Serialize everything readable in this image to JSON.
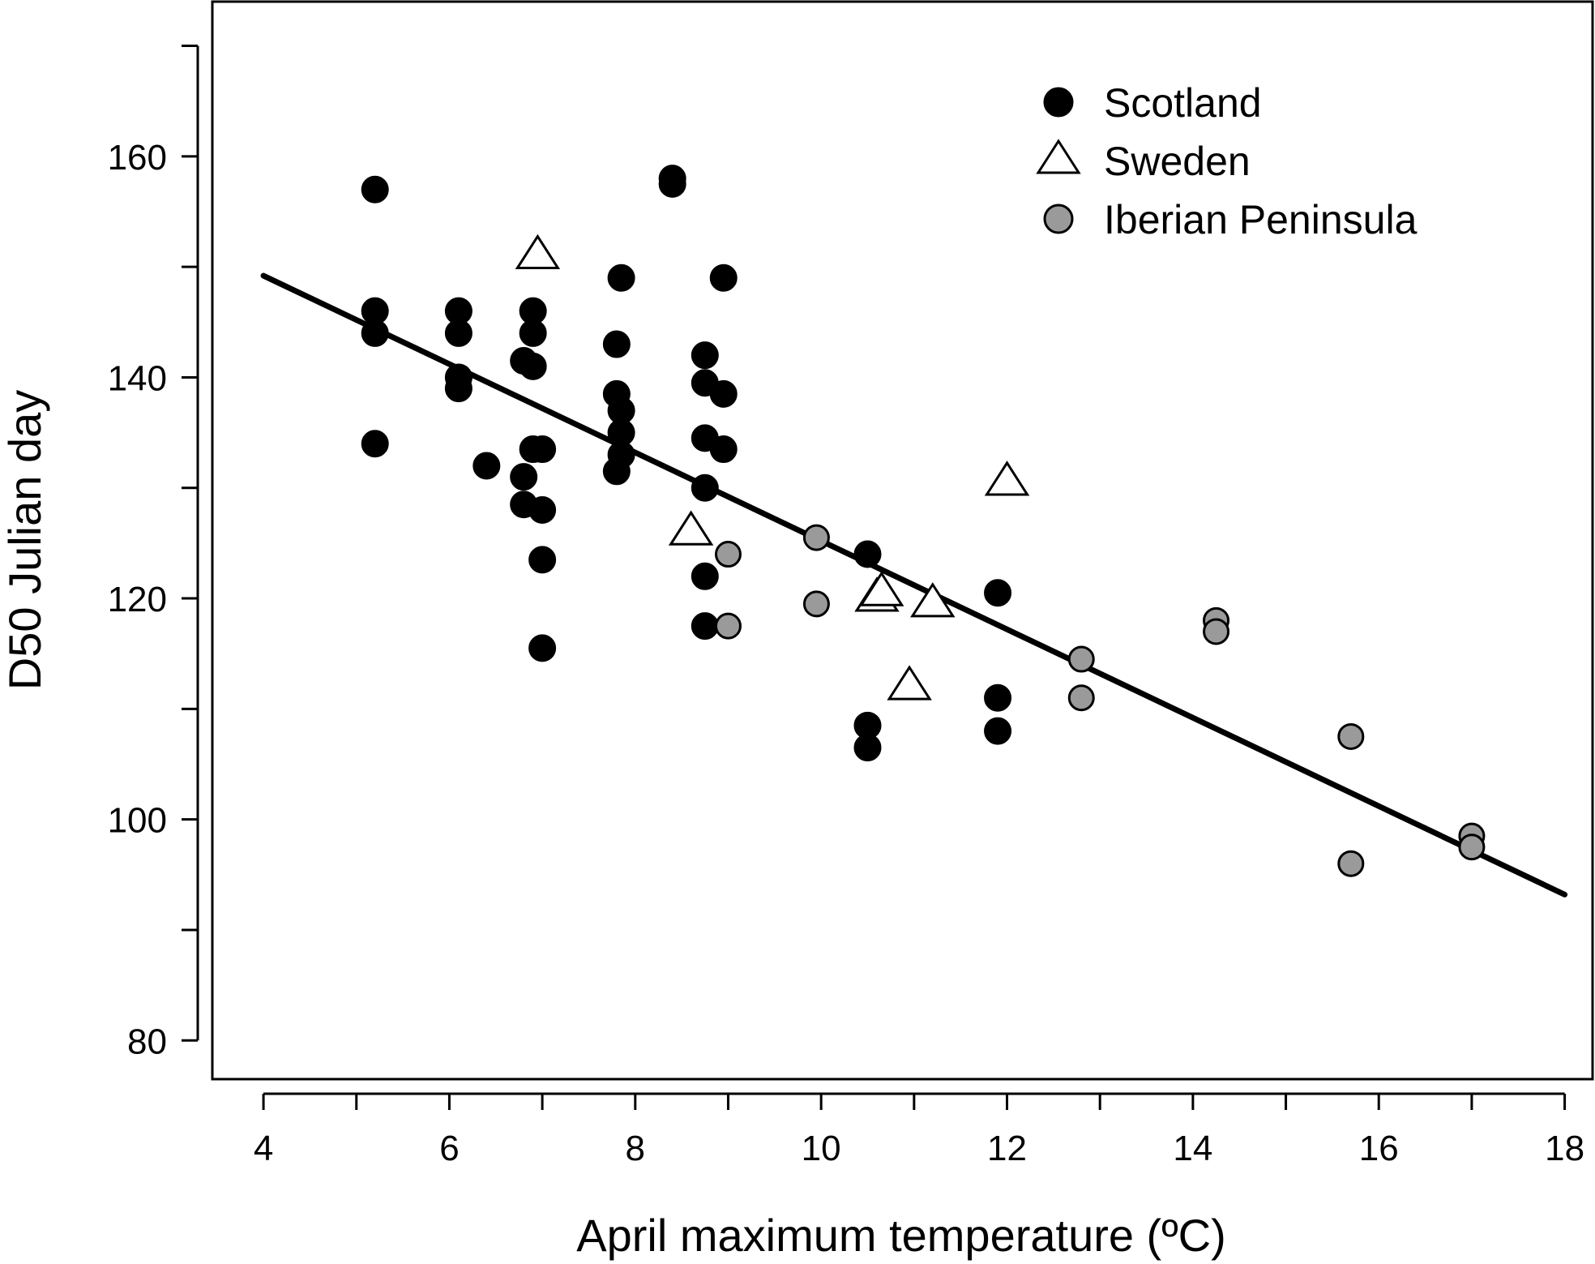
{
  "chart_data": {
    "type": "scatter",
    "title": "",
    "xlabel": "April maximum temperature (ºC)",
    "ylabel": "D50 Julian day",
    "xlim": [
      3.45,
      18.3
    ],
    "ylim": [
      76.5,
      174
    ],
    "x_ticks": [
      4,
      5,
      6,
      7,
      8,
      9,
      10,
      11,
      12,
      13,
      14,
      15,
      16,
      17,
      18
    ],
    "x_tick_labels": [
      "4",
      "",
      "6",
      "",
      "8",
      "",
      "10",
      "",
      "12",
      "",
      "14",
      "",
      "16",
      "",
      "18"
    ],
    "y_ticks": [
      80,
      90,
      100,
      110,
      120,
      130,
      140,
      150,
      160,
      170
    ],
    "y_tick_labels": [
      "80",
      "",
      "100",
      "",
      "120",
      "",
      "140",
      "",
      "160",
      ""
    ],
    "grid": false,
    "legend_position": "top-right",
    "legend": [
      "Scotland",
      "Sweden",
      "Iberian Peninsula"
    ],
    "colors": {
      "scotland": "#000000",
      "sweden": "#ffffff",
      "iberian": "#9a9a9a",
      "line": "#000000"
    },
    "series": [
      {
        "name": "Scotland",
        "marker": "filled-circle",
        "points": [
          [
            5.2,
            157
          ],
          [
            5.2,
            146
          ],
          [
            5.2,
            144
          ],
          [
            5.2,
            134
          ],
          [
            6.1,
            146
          ],
          [
            6.1,
            144
          ],
          [
            6.1,
            140
          ],
          [
            6.1,
            139
          ],
          [
            6.4,
            132
          ],
          [
            6.8,
            141.5
          ],
          [
            6.8,
            131
          ],
          [
            6.8,
            128.5
          ],
          [
            6.9,
            146
          ],
          [
            6.9,
            144
          ],
          [
            6.9,
            141
          ],
          [
            6.9,
            133.5
          ],
          [
            7.0,
            133.5
          ],
          [
            7.0,
            128
          ],
          [
            7.0,
            123.5
          ],
          [
            7.0,
            115.5
          ],
          [
            7.8,
            143
          ],
          [
            7.8,
            138.5
          ],
          [
            7.8,
            131.5
          ],
          [
            7.85,
            149
          ],
          [
            7.85,
            137
          ],
          [
            7.85,
            135
          ],
          [
            7.85,
            133
          ],
          [
            8.4,
            158
          ],
          [
            8.4,
            157.5
          ],
          [
            8.75,
            142
          ],
          [
            8.75,
            139.5
          ],
          [
            8.75,
            134.5
          ],
          [
            8.75,
            130
          ],
          [
            8.75,
            122
          ],
          [
            8.75,
            117.5
          ],
          [
            8.95,
            149
          ],
          [
            8.95,
            138.5
          ],
          [
            8.95,
            133.5
          ],
          [
            10.5,
            124
          ],
          [
            10.5,
            108.5
          ],
          [
            10.5,
            106.5
          ],
          [
            11.9,
            120.5
          ],
          [
            11.9,
            111
          ],
          [
            11.9,
            108
          ]
        ]
      },
      {
        "name": "Sweden",
        "marker": "open-triangle",
        "points": [
          [
            6.95,
            151
          ],
          [
            8.6,
            126
          ],
          [
            10.6,
            120
          ],
          [
            10.65,
            120.5
          ],
          [
            10.95,
            112
          ],
          [
            11.2,
            119.5
          ],
          [
            12.0,
            130.5
          ]
        ]
      },
      {
        "name": "Iberian Peninsula",
        "marker": "grey-circle",
        "points": [
          [
            9.0,
            124
          ],
          [
            9.0,
            117.5
          ],
          [
            9.95,
            125.5
          ],
          [
            9.95,
            119.5
          ],
          [
            12.8,
            114.5
          ],
          [
            12.8,
            111
          ],
          [
            14.25,
            118
          ],
          [
            14.25,
            117
          ],
          [
            15.7,
            107.5
          ],
          [
            15.7,
            96
          ],
          [
            17.0,
            98.5
          ],
          [
            17.0,
            97.5
          ]
        ]
      }
    ],
    "fit_line": {
      "x": [
        4.0,
        18.0
      ],
      "y": [
        149.2,
        93.2
      ]
    }
  }
}
